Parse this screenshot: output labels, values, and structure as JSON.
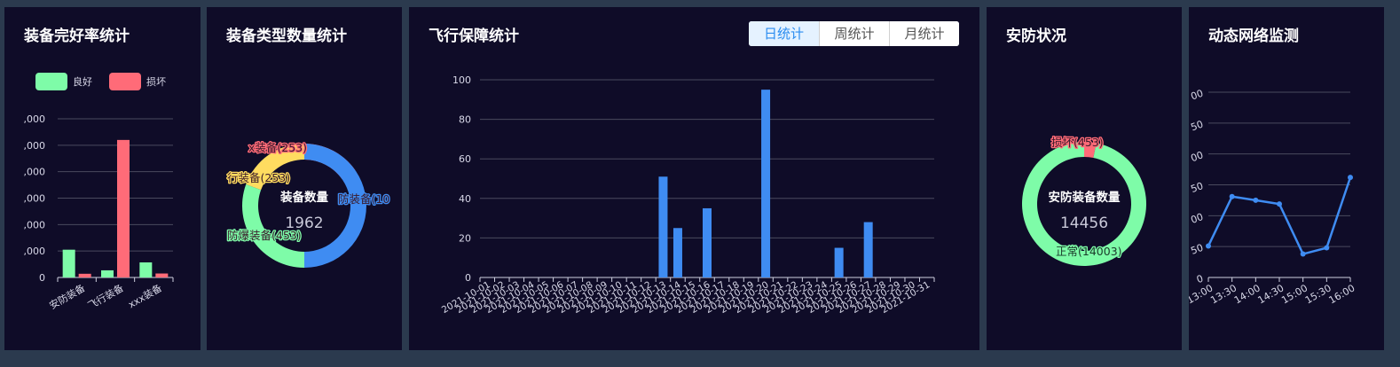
{
  "panels": {
    "equip_health": {
      "title": "装备完好率统计"
    },
    "equip_type": {
      "title": "装备类型数量统计"
    },
    "flight": {
      "title": "飞行保障统计"
    },
    "security": {
      "title": "安防状况"
    },
    "network": {
      "title": "动态网络监测"
    }
  },
  "flight_tabs": [
    "日统计",
    "周统计",
    "月统计"
  ],
  "flight_active_tab": "日统计",
  "colors": {
    "good": "#7efca8",
    "damaged": "#ff6b78",
    "blue": "#3f8cf2",
    "yellow": "#ffdc60",
    "grid": "#4a4a5e",
    "page_bg": "#2b3a4e",
    "panel_bg": "#0f0c28"
  },
  "chart_data": [
    {
      "type": "bar",
      "legend": [
        "良好",
        "损坏"
      ],
      "legend_position": "top",
      "categories": [
        "安防装备",
        "飞行装备",
        "xxx装备"
      ],
      "series": [
        {
          "name": "良好",
          "values": [
            1050,
            270,
            570
          ]
        },
        {
          "name": "损坏",
          "values": [
            140,
            5200,
            150
          ]
        }
      ],
      "y_ticks": [
        ",000",
        ",000",
        ",000",
        ",000",
        ",000",
        ",000",
        "0"
      ],
      "ylim": [
        0,
        6000
      ],
      "grid": true
    },
    {
      "type": "pie",
      "center_label": "装备数量",
      "center_value": "1962",
      "slices": [
        {
          "label": "x装备(253)",
          "value": 253
        },
        {
          "label": "行装备(253)",
          "value": 253
        },
        {
          "label": "防爆装备(453)",
          "value": 453
        },
        {
          "label": "防装备(10",
          "value": 1003
        }
      ]
    },
    {
      "type": "bar",
      "x": [
        "2021-10-01",
        "2021-10-02",
        "2021-10-03",
        "2021-10-04",
        "2021-10-05",
        "2021-10-06",
        "2021-10-07",
        "2021-10-08",
        "2021-10-09",
        "2021-10-10",
        "2021-10-11",
        "2021-10-12",
        "2021-10-13",
        "2021-10-14",
        "2021-10-15",
        "2021-10-16",
        "2021-10-17",
        "2021-10-18",
        "2021-10-19",
        "2021-10-20",
        "2021-10-21",
        "2021-10-22",
        "2021-10-23",
        "2021-10-24",
        "2021-10-25",
        "2021-10-26",
        "2021-10-27",
        "2021-10-28",
        "2021-10-29",
        "2021-10-30",
        "2021-10-31"
      ],
      "values": [
        0,
        0,
        0,
        0,
        0,
        0,
        0,
        0,
        0,
        0,
        0,
        0,
        51,
        25,
        0,
        35,
        0,
        0,
        0,
        95,
        0,
        0,
        0,
        0,
        15,
        0,
        28,
        0,
        0,
        0,
        0
      ],
      "y_ticks": [
        "0",
        "20",
        "40",
        "60",
        "80",
        "100"
      ],
      "ylim": [
        0,
        100
      ],
      "grid": true
    },
    {
      "type": "pie",
      "center_label": "安防装备数量",
      "center_value": "14456",
      "slices": [
        {
          "label": "损坏(453)",
          "value": 453
        },
        {
          "label": "正常(14003)",
          "value": 14003
        }
      ]
    },
    {
      "type": "line",
      "x": [
        "13:00",
        "13:30",
        "14:00",
        "14:30",
        "15:00",
        "15:30",
        "16:00"
      ],
      "values": [
        51,
        131,
        125,
        119,
        38,
        48,
        162
      ],
      "y_ticks": [
        "0",
        "50",
        "00",
        "50",
        "00",
        "50",
        "00"
      ],
      "ylim": [
        0,
        300
      ],
      "grid": true
    }
  ]
}
